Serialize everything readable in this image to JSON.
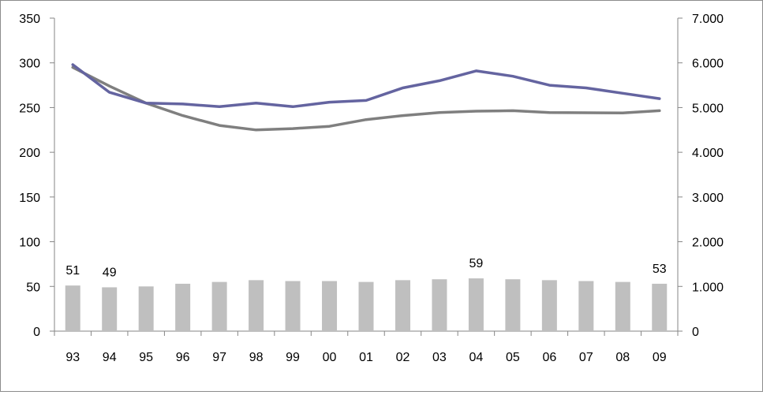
{
  "chart_data": {
    "type": "bar+line",
    "categories": [
      "93",
      "94",
      "95",
      "96",
      "97",
      "98",
      "99",
      "00",
      "01",
      "02",
      "03",
      "04",
      "05",
      "06",
      "07",
      "08",
      "09"
    ],
    "bars": {
      "axis": "left",
      "values": [
        51,
        49,
        50,
        53,
        55,
        57,
        56,
        56,
        55,
        57,
        58,
        59,
        58,
        57,
        56,
        55,
        53
      ],
      "color": "#bfbfbf",
      "data_labels": [
        {
          "index": 0,
          "text": "51"
        },
        {
          "index": 1,
          "text": "49"
        },
        {
          "index": 11,
          "text": "59"
        },
        {
          "index": 16,
          "text": "53"
        }
      ]
    },
    "series": [
      {
        "axis": "left",
        "color": "#6464a0",
        "values": [
          298,
          267,
          255,
          254,
          251,
          255,
          251,
          256,
          258,
          272,
          280,
          291,
          285,
          275,
          272,
          266,
          260
        ]
      },
      {
        "axis": "right",
        "color": "#7f7f7f",
        "values": [
          5900,
          5480,
          5100,
          4820,
          4600,
          4500,
          4530,
          4580,
          4730,
          4820,
          4890,
          4920,
          4930,
          4890,
          4885,
          4880,
          4930
        ]
      }
    ],
    "left_axis": {
      "ylim": [
        0,
        350
      ],
      "ticks": [
        0,
        50,
        100,
        150,
        200,
        250,
        300,
        350
      ],
      "tick_labels": [
        "0",
        "50",
        "100",
        "150",
        "200",
        "250",
        "300",
        "350"
      ]
    },
    "right_axis": {
      "ylim": [
        0,
        7000
      ],
      "ticks": [
        0,
        1000,
        2000,
        3000,
        4000,
        5000,
        6000,
        7000
      ],
      "tick_labels": [
        "0",
        "1.000",
        "2.000",
        "3.000",
        "4.000",
        "5.000",
        "6.000",
        "7.000"
      ]
    },
    "grid": false,
    "legend": "none"
  }
}
